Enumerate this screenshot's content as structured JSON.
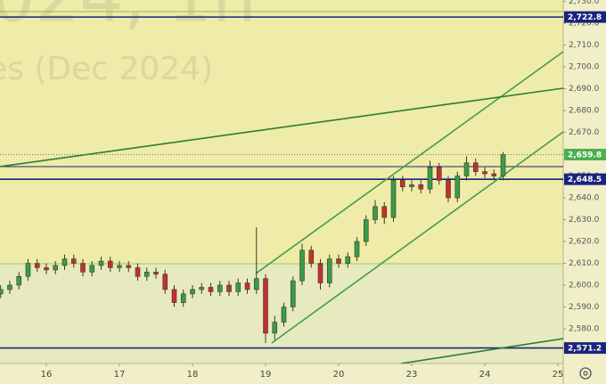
{
  "chart_data": {
    "type": "candlestick",
    "watermark": [
      "024, 1h",
      "es (Dec 2024)"
    ],
    "x": [
      -0.625,
      -0.5,
      -0.375,
      -0.25,
      -0.125,
      0,
      0.125,
      0.25,
      0.375,
      0.5,
      0.625,
      0.75,
      0.875,
      1,
      1.125,
      1.25,
      1.375,
      1.5,
      1.625,
      1.75,
      1.875,
      2,
      2.125,
      2.25,
      2.375,
      2.5,
      2.625,
      2.75,
      2.875,
      3,
      3.125,
      3.25,
      3.375,
      3.5,
      3.625,
      3.75,
      3.875,
      4,
      4.125,
      4.25,
      4.375,
      4.5,
      4.625,
      4.75,
      4.875,
      5,
      5.125,
      5.25,
      5.375,
      5.5,
      5.625,
      5.75,
      5.875,
      6,
      6.125,
      6.25
    ],
    "open": [
      2596,
      2598,
      2600,
      2604,
      2610,
      2608,
      2607,
      2609,
      2612,
      2610,
      2606,
      2609,
      2611,
      2608,
      2609,
      2608,
      2604,
      2606,
      2605,
      2598,
      2592,
      2596,
      2598,
      2599,
      2597,
      2600,
      2597,
      2601,
      2598,
      2603,
      2578,
      2583,
      2590,
      2602,
      2616,
      2610,
      2601,
      2612,
      2610,
      2613,
      2620,
      2630,
      2636,
      2631,
      2648,
      2645,
      2646,
      2644,
      2654,
      2648,
      2640,
      2650,
      2656,
      2652,
      2651,
      2650
    ],
    "high": [
      2600,
      2602,
      2606,
      2612,
      2612,
      2610,
      2611,
      2614,
      2614,
      2612,
      2611,
      2613,
      2613,
      2611,
      2611,
      2610,
      2608,
      2608,
      2607,
      2600,
      2598,
      2600,
      2601,
      2601,
      2602,
      2602,
      2603,
      2603,
      2626.5,
      2605,
      2586,
      2592,
      2604,
      2619,
      2618,
      2612,
      2614,
      2614,
      2615,
      2622,
      2632,
      2639,
      2638,
      2650,
      2650,
      2648,
      2648,
      2657,
      2656,
      2650,
      2652,
      2659,
      2658,
      2654,
      2653,
      2661
    ],
    "low": [
      2594,
      2596,
      2598,
      2602,
      2606,
      2605,
      2605,
      2607,
      2608,
      2604,
      2604,
      2607,
      2606,
      2606,
      2606,
      2602,
      2602,
      2603,
      2596,
      2590,
      2590,
      2594,
      2596,
      2595,
      2595,
      2595,
      2595,
      2596,
      2596,
      2573.5,
      2575,
      2581,
      2588,
      2600,
      2608,
      2598,
      2599,
      2608,
      2608,
      2611,
      2618,
      2628,
      2628,
      2629,
      2643,
      2643,
      2642,
      2642,
      2646,
      2638,
      2638,
      2648,
      2650,
      2649,
      2648,
      2648
    ],
    "close": [
      2598,
      2600,
      2604,
      2610,
      2608,
      2607,
      2609,
      2612,
      2610,
      2606,
      2609,
      2611,
      2608,
      2609,
      2608,
      2604,
      2606,
      2605,
      2598,
      2592,
      2596,
      2598,
      2599,
      2597,
      2600,
      2597,
      2601,
      2598,
      2603,
      2578,
      2583,
      2590,
      2602,
      2616,
      2610,
      2601,
      2612,
      2610,
      2613,
      2620,
      2630,
      2636,
      2631,
      2648,
      2645,
      2646,
      2644,
      2654,
      2648,
      2640,
      2650,
      2656,
      2652,
      2651,
      2650,
      2659.8
    ],
    "up_color": "#3b9b4a",
    "down_color": "#c3302d",
    "xlim": [
      -0.634,
      7.073
    ],
    "xticks": [
      {
        "value": 0,
        "label": "16"
      },
      {
        "value": 1,
        "label": "17"
      },
      {
        "value": 2,
        "label": "18"
      },
      {
        "value": 3,
        "label": "19"
      },
      {
        "value": 4,
        "label": "20"
      },
      {
        "value": 5,
        "label": "23"
      },
      {
        "value": 6,
        "label": "24"
      },
      {
        "value": 7,
        "label": "25"
      }
    ],
    "ylim": [
      2564.1,
      2730.6
    ],
    "yticks": [
      {
        "value": 2570,
        "label": "2,570.0"
      },
      {
        "value": 2580,
        "label": "2,580.0"
      },
      {
        "value": 2590,
        "label": "2,590.0"
      },
      {
        "value": 2600,
        "label": "2,600.0"
      },
      {
        "value": 2610,
        "label": "2,610.0"
      },
      {
        "value": 2620,
        "label": "2,620.0"
      },
      {
        "value": 2630,
        "label": "2,630.0"
      },
      {
        "value": 2640,
        "label": "2,640.0"
      },
      {
        "value": 2650,
        "label": "2,650.0"
      },
      {
        "value": 2660,
        "label": "2,660.0"
      },
      {
        "value": 2670,
        "label": "2,670.0"
      },
      {
        "value": 2680,
        "label": "2,680.0"
      },
      {
        "value": 2690,
        "label": "2,690.0"
      },
      {
        "value": 2700,
        "label": "2,700.0"
      },
      {
        "value": 2710,
        "label": "2,710.0"
      },
      {
        "value": 2720,
        "label": "2,720.0"
      },
      {
        "value": 2730,
        "label": "2,730.0"
      }
    ],
    "hlines": [
      {
        "value": 2725.3,
        "color": "#8bc34a"
      },
      {
        "value": 2722.8,
        "label": "2,722.8",
        "color": "#1a237e"
      },
      {
        "value": 2654.3,
        "color": "#1a237e"
      },
      {
        "value": 2648.5,
        "label": "2,648.5",
        "color": "#1a237e"
      },
      {
        "value": 2609.8,
        "color": "#9ccc65"
      },
      {
        "value": 2571.2,
        "label": "2,571.2",
        "color": "#1a237e"
      }
    ],
    "last_price": {
      "value": 2659.8,
      "label": "2,659.8",
      "color": "#4caf50"
    },
    "trend_lines": [
      {
        "x": [
          2.866,
          7.073
        ],
        "y": [
          2605.3,
          2706.9
        ],
        "color": "#43a047"
      },
      {
        "x": [
          3.085,
          7.073
        ],
        "y": [
          2573.5,
          2670.2
        ],
        "color": "#43a047"
      },
      {
        "x": [
          -0.634,
          7.073
        ],
        "y": [
          2654.3,
          2690.2
        ],
        "color": "#2e7d32"
      },
      {
        "x": [
          4.854,
          7.073
        ],
        "y": [
          2564.1,
          2575.5
        ],
        "color": "#2e7d32"
      }
    ]
  }
}
